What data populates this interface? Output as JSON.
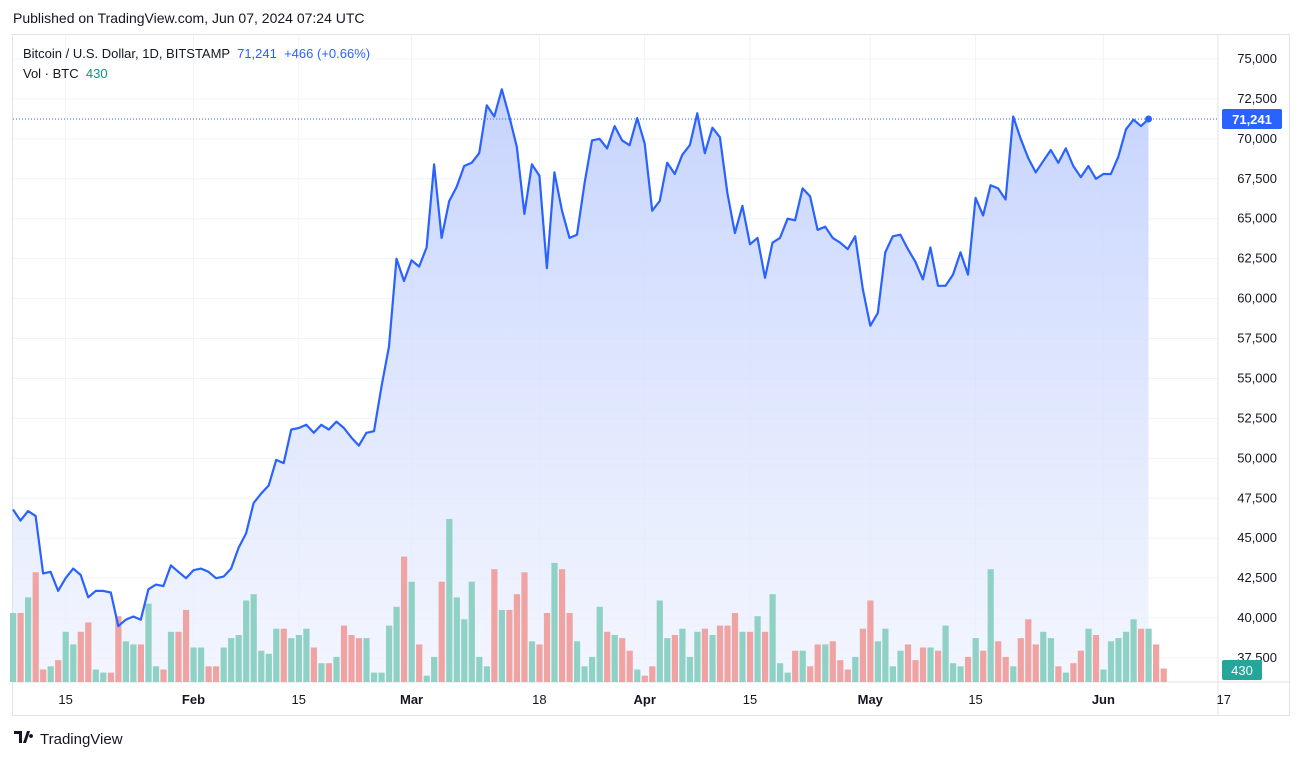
{
  "header": {
    "published": "Published on TradingView.com, Jun 07, 2024 07:24 UTC"
  },
  "legend": {
    "symbol": "Bitcoin / U.S. Dollar, 1D, BITSTAMP",
    "last_price": "71,241",
    "change": "+466 (+0.66%)",
    "vol_label": "Vol · BTC",
    "vol_value": "430"
  },
  "footer": {
    "brand": "TradingView"
  },
  "colors": {
    "line": "#2962ff",
    "area_top": "#c7d5fd",
    "up_volume": "#8fd1c4",
    "down_volume": "#f0a3a3",
    "vol_badge": "#26a69a",
    "price_badge": "#2962ff"
  },
  "chart_data": {
    "type": "line",
    "title": "Bitcoin / U.S. Dollar, 1D, BITSTAMP",
    "xlabel": "",
    "ylabel": "",
    "ylim": [
      36000,
      76500
    ],
    "y_ticks": [
      "75,000",
      "72,500",
      "70,000",
      "67,500",
      "65,000",
      "62,500",
      "60,000",
      "57,500",
      "55,000",
      "52,500",
      "50,000",
      "47,500",
      "45,000",
      "42,500",
      "40,000",
      "37,500"
    ],
    "x_ticks": [
      {
        "label": "15",
        "date": "2024-01-15"
      },
      {
        "label": "Feb",
        "date": "2024-02-01"
      },
      {
        "label": "15",
        "date": "2024-02-15"
      },
      {
        "label": "Mar",
        "date": "2024-03-01"
      },
      {
        "label": "18",
        "date": "2024-03-18"
      },
      {
        "label": "Apr",
        "date": "2024-04-01"
      },
      {
        "label": "15",
        "date": "2024-04-15"
      },
      {
        "label": "May",
        "date": "2024-05-01"
      },
      {
        "label": "15",
        "date": "2024-05-15"
      },
      {
        "label": "Jun",
        "date": "2024-06-01"
      },
      {
        "label": "17",
        "date": "2024-06-17"
      }
    ],
    "first_date": "2024-01-08",
    "last_price_marker": "71,241",
    "volume_marker": "430",
    "series": [
      {
        "values": [
          46800,
          46100,
          46700,
          46400,
          42800,
          42900,
          41700,
          42500,
          43100,
          42700,
          41300,
          41700,
          41700,
          41600,
          39500,
          39900,
          40100,
          39900,
          41800,
          42100,
          42000,
          43300,
          42900,
          42500,
          43000,
          43100,
          42900,
          42500,
          42600,
          43100,
          44400,
          45300,
          47200,
          47800,
          48300,
          49900,
          49700,
          51800,
          51900,
          52100,
          51600,
          52100,
          51800,
          52300,
          51900,
          51300,
          50800,
          51600,
          51700,
          54500,
          57000,
          62500,
          61100,
          62400,
          62000,
          63200,
          68400,
          63800,
          66100,
          67000,
          68300,
          68500,
          69100,
          72100,
          71400,
          73100,
          71400,
          69500,
          65300,
          68400,
          67700,
          61900,
          67900,
          65500,
          63800,
          64000,
          67200,
          69900,
          70000,
          69400,
          70800,
          69900,
          69600,
          71300,
          69700,
          65500,
          66100,
          68500,
          67800,
          69000,
          69600,
          71600,
          69100,
          70700,
          70100,
          66600,
          64100,
          65800,
          63400,
          63800,
          61300,
          63500,
          63800,
          65000,
          64900,
          66900,
          66400,
          64300,
          64500,
          63800,
          63500,
          63100,
          63900,
          60600,
          58300,
          59100,
          62900,
          63900,
          64000,
          63100,
          62300,
          61200,
          63200,
          60800,
          60800,
          61500,
          62900,
          61500,
          66300,
          65200,
          67100,
          66900,
          66200,
          71400,
          70000,
          68800,
          67900,
          68600,
          69300,
          68500,
          69400,
          68300,
          67600,
          68300,
          67500,
          67800,
          67800,
          68900,
          70600,
          71200,
          70800,
          71241
        ]
      },
      {
        "name": "Vol · BTC",
        "values": [
          2200,
          2200,
          2700,
          3500,
          400,
          500,
          700,
          1600,
          1200,
          1600,
          1900,
          400,
          300,
          300,
          2100,
          1300,
          1200,
          1200,
          2500,
          500,
          400,
          1600,
          1600,
          2300,
          1100,
          1100,
          500,
          500,
          1100,
          1400,
          1500,
          2600,
          2800,
          1000,
          900,
          1700,
          1700,
          1400,
          1500,
          1700,
          1100,
          600,
          600,
          800,
          1800,
          1500,
          1400,
          1400,
          300,
          300,
          1800,
          2400,
          4000,
          3200,
          1200,
          200,
          800,
          3200,
          5200,
          2700,
          2000,
          3200,
          800,
          500,
          3600,
          2300,
          2300,
          2800,
          3500,
          1300,
          1200,
          2200,
          3800,
          3600,
          2200,
          1300,
          500,
          800,
          2400,
          1600,
          1500,
          1400,
          1000,
          400,
          200,
          500,
          2600,
          1400,
          1500,
          1700,
          800,
          1600,
          1700,
          1500,
          1800,
          1800,
          2200,
          1600,
          1600,
          2100,
          1600,
          2800,
          600,
          300,
          1000,
          1000,
          500,
          1200,
          1200,
          1300,
          700,
          400,
          800,
          1700,
          2600,
          1300,
          1700,
          500,
          1000,
          1200,
          700,
          1100,
          1100,
          1000,
          1800,
          600,
          500,
          800,
          1400,
          1000,
          3600,
          1300,
          800,
          500,
          1400,
          2000,
          1200,
          1600,
          1400,
          500,
          300,
          600,
          1000,
          1700,
          1500,
          400,
          1300,
          1400,
          1600,
          2000,
          1700,
          1700,
          1200,
          430
        ]
      }
    ]
  }
}
